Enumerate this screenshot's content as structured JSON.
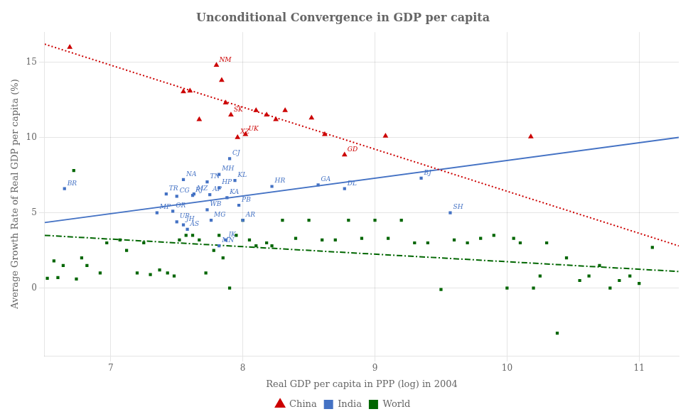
{
  "chart_data": {
    "type": "scatter",
    "title": "Unconditional Convergence in GDP per capita",
    "xlabel": "Real GDP per capita in PPP (log) in 2004",
    "ylabel": "Average Growth Rate of Real GDP per capita (%)",
    "xlim": [
      6.5,
      11.3
    ],
    "ylim": [
      -4.5,
      17.0
    ],
    "xticks": [
      7,
      8,
      9,
      10,
      11
    ],
    "yticks": [
      0,
      5,
      10,
      15
    ],
    "grid": true,
    "legend": "bottom",
    "series": [
      {
        "name": "China",
        "color": "#cc0000",
        "marker": "triangle",
        "line_style": "dotted",
        "x": [
          6.69,
          7.55,
          7.6,
          7.67,
          7.8,
          7.84,
          7.87,
          7.91,
          7.96,
          8.02,
          8.1,
          8.18,
          8.25,
          8.32,
          8.52,
          8.62,
          8.77,
          9.08,
          10.18
        ],
        "values": [
          16.0,
          13.05,
          13.1,
          11.2,
          14.8,
          13.8,
          12.3,
          11.5,
          10.0,
          10.2,
          11.8,
          11.5,
          11.2,
          11.8,
          11.3,
          10.2,
          8.85,
          10.1,
          10.05
        ],
        "labels": [
          null,
          null,
          null,
          null,
          "NM",
          null,
          null,
          "SK",
          "XZ",
          "UK",
          null,
          null,
          null,
          null,
          null,
          null,
          "GD",
          null,
          null
        ],
        "trend": {
          "x": [
            6.5,
            11.3
          ],
          "values": [
            16.2,
            2.8
          ]
        }
      },
      {
        "name": "India",
        "color": "#4472c4",
        "marker": "square",
        "line_style": "solid",
        "x": [
          6.65,
          7.35,
          7.42,
          7.5,
          7.55,
          7.63,
          7.47,
          7.5,
          7.55,
          7.58,
          7.62,
          7.73,
          7.73,
          7.76,
          7.82,
          7.82,
          7.88,
          7.94,
          7.97,
          8.0,
          7.9,
          7.75,
          7.87,
          7.82,
          8.22,
          8.57,
          8.77,
          9.35,
          9.57
        ],
        "values": [
          6.6,
          5.0,
          6.25,
          6.1,
          7.2,
          6.25,
          5.1,
          4.4,
          4.2,
          3.9,
          6.15,
          7.05,
          5.2,
          4.5,
          7.55,
          6.65,
          6.0,
          7.15,
          5.5,
          4.5,
          8.6,
          6.2,
          3.2,
          2.8,
          6.75,
          6.85,
          6.6,
          7.3,
          5.0
        ],
        "labels": [
          "BR",
          "MP",
          "TR",
          "CG",
          "NA",
          "MZ",
          "OR",
          "UP",
          "JH",
          "AS",
          "RJ",
          "TN",
          "WB",
          "MG",
          "MH",
          "HP",
          "KA",
          "KL",
          "PB",
          "AR",
          "CJ",
          "AP",
          "JK",
          "MN",
          "HR",
          "GA",
          "DL",
          "BJ",
          "SH"
        ],
        "trend": {
          "x": [
            6.5,
            11.3
          ],
          "values": [
            4.35,
            10.0
          ]
        }
      },
      {
        "name": "World",
        "color": "#006600",
        "marker": "square",
        "line_style": "dashdot",
        "x": [
          6.52,
          6.57,
          6.6,
          6.64,
          6.72,
          6.74,
          6.78,
          6.82,
          6.92,
          6.97,
          7.07,
          7.12,
          7.2,
          7.25,
          7.3,
          7.37,
          7.43,
          7.48,
          7.52,
          7.57,
          7.62,
          7.67,
          7.72,
          7.78,
          7.82,
          7.85,
          7.9,
          7.95,
          8.0,
          8.05,
          8.1,
          8.18,
          8.22,
          8.3,
          8.4,
          8.5,
          8.6,
          8.7,
          8.8,
          8.9,
          9.0,
          9.1,
          9.2,
          9.3,
          9.4,
          9.5,
          9.6,
          9.7,
          9.8,
          9.9,
          10.0,
          10.05,
          10.1,
          10.2,
          10.25,
          10.3,
          10.38,
          10.45,
          10.55,
          10.62,
          10.7,
          10.78,
          10.85,
          10.93,
          11.0,
          11.1
        ],
        "values": [
          0.65,
          1.8,
          0.7,
          1.5,
          7.8,
          0.6,
          2.0,
          1.5,
          1.0,
          3.0,
          3.2,
          2.5,
          1.0,
          3.0,
          0.9,
          1.2,
          1.0,
          0.8,
          3.2,
          3.5,
          3.5,
          3.2,
          1.0,
          2.5,
          3.5,
          2.0,
          0.0,
          3.5,
          4.5,
          3.2,
          2.8,
          3.0,
          2.8,
          4.5,
          3.3,
          4.5,
          3.2,
          3.2,
          4.5,
          3.3,
          4.5,
          3.3,
          4.5,
          3.0,
          3.0,
          -0.1,
          3.2,
          3.0,
          3.3,
          3.5,
          0.0,
          3.3,
          3.0,
          0.0,
          0.8,
          3.0,
          -3.0,
          2.0,
          0.5,
          0.8,
          1.5,
          0.0,
          0.5,
          0.8,
          0.3,
          2.7
        ],
        "trend": {
          "x": [
            6.5,
            11.3
          ],
          "values": [
            3.5,
            1.1
          ]
        }
      }
    ]
  }
}
